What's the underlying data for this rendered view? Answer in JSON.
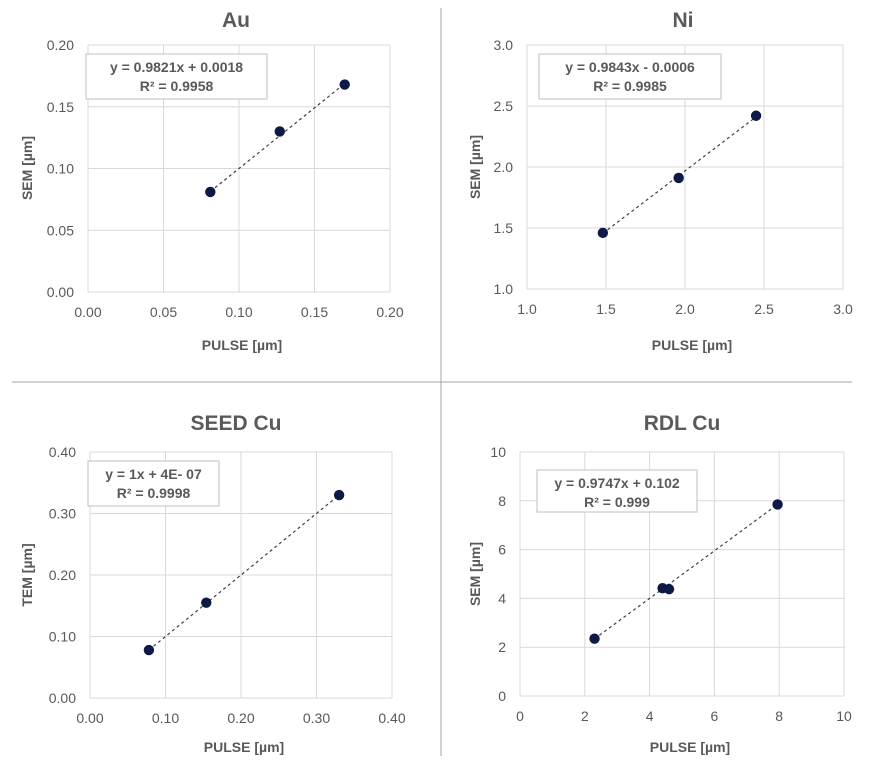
{
  "chart_data": [
    {
      "type": "scatter",
      "title": "Au",
      "xlabel": "PULSE [µm]",
      "ylabel": "SEM [µm]",
      "xlim": [
        0,
        0.2
      ],
      "ylim": [
        0,
        0.2
      ],
      "xticks": [
        "0.00",
        "0.05",
        "0.10",
        "0.15",
        "0.20"
      ],
      "yticks": [
        "0.00",
        "0.05",
        "0.10",
        "0.15",
        "0.20"
      ],
      "points": [
        {
          "x": 0.081,
          "y": 0.081
        },
        {
          "x": 0.127,
          "y": 0.13
        },
        {
          "x": 0.17,
          "y": 0.168
        }
      ],
      "trendline": {
        "slope": 0.9821,
        "intercept": 0.0018,
        "x_range": [
          0.081,
          0.17
        ]
      },
      "equation": "y = 0.9821x + 0.0018",
      "r2": "R² = 0.9958",
      "grid": true,
      "legend": "none"
    },
    {
      "type": "scatter",
      "title": "Ni",
      "xlabel": "PULSE [µm]",
      "ylabel": "SEM [µm]",
      "xlim": [
        1.0,
        3.0
      ],
      "ylim": [
        1.0,
        3.0
      ],
      "xticks": [
        "1.0",
        "1.5",
        "2.0",
        "2.5",
        "3.0"
      ],
      "yticks": [
        "1.0",
        "1.5",
        "2.0",
        "2.5",
        "3.0"
      ],
      "points": [
        {
          "x": 1.48,
          "y": 1.46
        },
        {
          "x": 1.96,
          "y": 1.91
        },
        {
          "x": 2.45,
          "y": 2.42
        }
      ],
      "trendline": {
        "slope": 0.9843,
        "intercept": -0.0006,
        "x_range": [
          1.48,
          2.45
        ]
      },
      "equation": "y = 0.9843x - 0.0006",
      "r2": "R² = 0.9985",
      "grid": true,
      "legend": "none"
    },
    {
      "type": "scatter",
      "title": "SEED Cu",
      "xlabel": "PULSE [µm]",
      "ylabel": "TEM [µm]",
      "xlim": [
        0,
        0.4
      ],
      "ylim": [
        0,
        0.4
      ],
      "xticks": [
        "0.00",
        "0.10",
        "0.20",
        "0.30",
        "0.40"
      ],
      "yticks": [
        "0.00",
        "0.10",
        "0.20",
        "0.30",
        "0.40"
      ],
      "points": [
        {
          "x": 0.078,
          "y": 0.078
        },
        {
          "x": 0.154,
          "y": 0.155
        },
        {
          "x": 0.33,
          "y": 0.33
        }
      ],
      "trendline": {
        "slope": 1.0,
        "intercept": 4e-07,
        "x_range": [
          0.078,
          0.33
        ]
      },
      "equation": "y = 1x + 4E- 07",
      "r2": "R² = 0.9998",
      "grid": true,
      "legend": "none"
    },
    {
      "type": "scatter",
      "title": "RDL Cu",
      "xlabel": "PULSE [µm]",
      "ylabel": "SEM [µm]",
      "xlim": [
        0,
        10
      ],
      "ylim": [
        0,
        10
      ],
      "xticks": [
        "0",
        "2",
        "4",
        "6",
        "8",
        "10"
      ],
      "yticks": [
        "0",
        "2",
        "4",
        "6",
        "8",
        "10"
      ],
      "points": [
        {
          "x": 2.3,
          "y": 2.35
        },
        {
          "x": 4.4,
          "y": 4.42
        },
        {
          "x": 4.6,
          "y": 4.38
        },
        {
          "x": 7.95,
          "y": 7.85
        }
      ],
      "trendline": {
        "slope": 0.9747,
        "intercept": 0.102,
        "x_range": [
          2.3,
          7.95
        ]
      },
      "equation": "y = 0.9747x + 0.102",
      "r2": "R² = 0.999",
      "grid": true,
      "legend": "none"
    }
  ]
}
